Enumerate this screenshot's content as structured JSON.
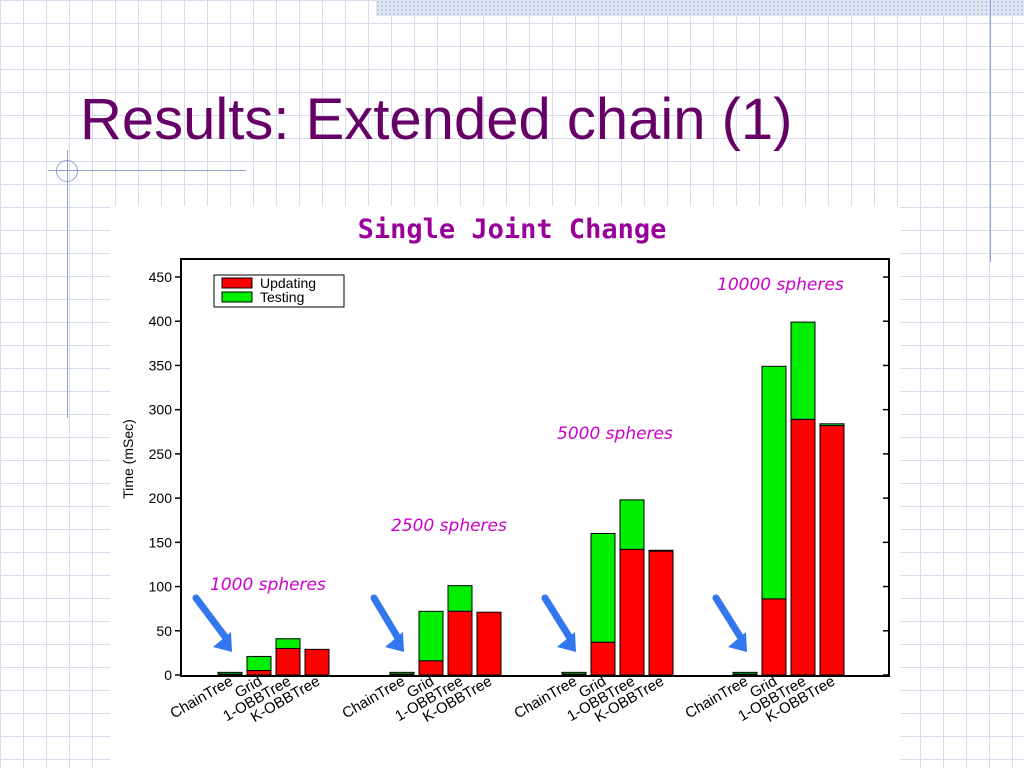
{
  "slide": {
    "title": "Results: Extended chain (1)"
  },
  "colors": {
    "title": "#660066",
    "chart_title": "#990099",
    "annotation": "#cc00cc",
    "updating": "#ff0000",
    "testing": "#00ee00",
    "arrow": "#3377ee"
  },
  "chart_data": {
    "type": "bar",
    "stacked": true,
    "title": "Single Joint Change",
    "xlabel": "",
    "ylabel": "Time (mSec)",
    "ylim": [
      0,
      450
    ],
    "yticks": [
      0,
      50,
      100,
      150,
      200,
      250,
      300,
      350,
      400,
      450
    ],
    "grid": false,
    "legend": "top-left",
    "methods": [
      "ChainTree",
      "Grid",
      "1-OBBTree",
      "K-OBBTree"
    ],
    "groups": [
      {
        "annotation": "1000 spheres",
        "updating": [
          1,
          5,
          30,
          29
        ],
        "testing": [
          2,
          16,
          11,
          0
        ]
      },
      {
        "annotation": "2500 spheres",
        "updating": [
          1,
          16,
          72,
          71
        ],
        "testing": [
          2,
          56,
          29,
          0
        ]
      },
      {
        "annotation": "5000 spheres",
        "updating": [
          1,
          37,
          142,
          140
        ],
        "testing": [
          2,
          123,
          56,
          1
        ]
      },
      {
        "annotation": "10000 spheres",
        "updating": [
          1,
          86,
          289,
          282
        ],
        "testing": [
          2,
          263,
          110,
          2
        ]
      }
    ],
    "series": [
      {
        "name": "Updating",
        "color": "#ff0000"
      },
      {
        "name": "Testing",
        "color": "#00ee00"
      }
    ]
  }
}
